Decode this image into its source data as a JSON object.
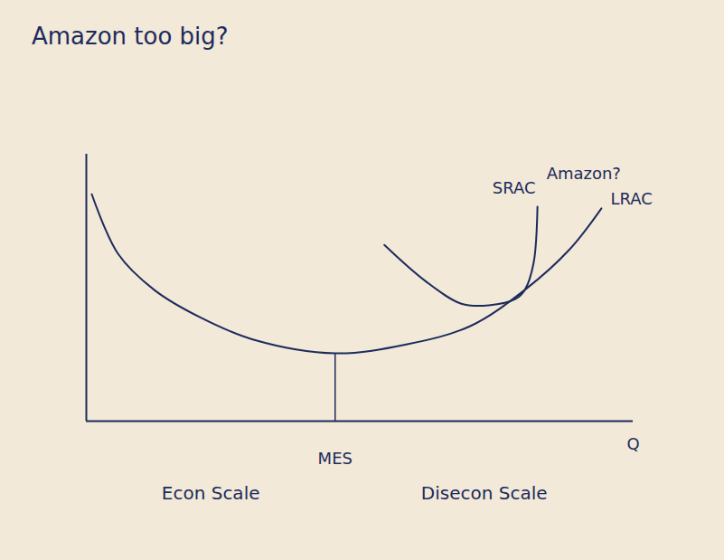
{
  "chart_data": {
    "type": "line",
    "title": "Amazon too big?",
    "x_label": "Q",
    "color": "#1d2b5c",
    "xlim": [
      0,
      100
    ],
    "ylim": [
      0,
      100
    ],
    "xticks": [],
    "yticks": [],
    "tick_labels": false,
    "grid": false,
    "series": [
      {
        "name": "LRAC",
        "color": "#1d2b5c",
        "x": [
          1,
          5.8,
          12.4,
          20.7,
          30.6,
          45.5,
          58.7,
          70.2,
          80.2,
          88.4,
          94.2
        ],
        "values": [
          85,
          62.7,
          49.2,
          39,
          30.5,
          25.4,
          28.8,
          35.6,
          49.2,
          64.4,
          79.7
        ]
      },
      {
        "name": "SRAC",
        "color": "#1d2b5c",
        "x": [
          54.5,
          62,
          68.6,
          73.6,
          78.5,
          80.2,
          81.8,
          82.5
        ],
        "values": [
          66,
          52.5,
          44,
          43.4,
          45.8,
          49.2,
          59.3,
          80.3
        ]
      }
    ],
    "mes": {
      "label": "MES",
      "x": 45.5,
      "y": 25.4
    },
    "annotations": [
      {
        "text": "Amazon?",
        "series": "SRAC"
      }
    ],
    "regions": [
      "Econ Scale",
      "Disecon Scale"
    ]
  }
}
